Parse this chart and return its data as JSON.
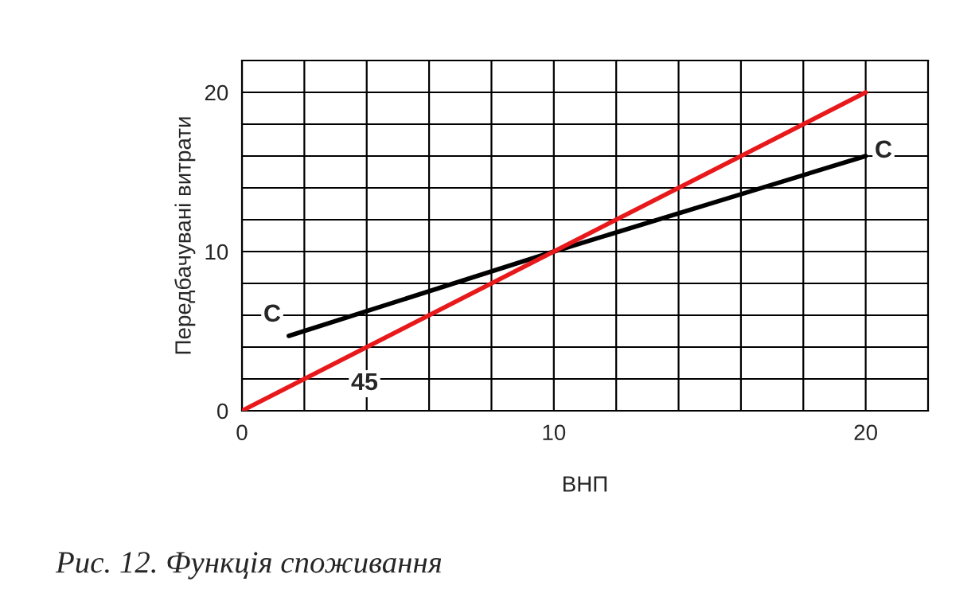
{
  "chart_data": {
    "type": "line",
    "xlabel": "ВНП",
    "ylabel": "Передбачувані витрати",
    "xlim": [
      0,
      22
    ],
    "ylim": [
      0,
      22
    ],
    "xticks": [
      0,
      {
        "value": 2,
        "label": null
      },
      {
        "value": 4,
        "label": null
      },
      {
        "value": 6,
        "label": null
      },
      {
        "value": 8,
        "label": null
      },
      10,
      {
        "value": 12,
        "label": null
      },
      {
        "value": 14,
        "label": null
      },
      {
        "value": 16,
        "label": null
      },
      {
        "value": 18,
        "label": null
      },
      20
    ],
    "yticks": [
      0,
      {
        "value": 2,
        "label": null
      },
      {
        "value": 4,
        "label": null
      },
      {
        "value": 6,
        "label": null
      },
      {
        "value": 8,
        "label": null
      },
      10,
      {
        "value": 12,
        "label": null
      },
      {
        "value": 14,
        "label": null
      },
      {
        "value": 16,
        "label": null
      },
      {
        "value": 18,
        "label": null
      },
      20
    ],
    "grid": true,
    "legend": false,
    "marker": "none",
    "line_style": "solid",
    "series": [
      {
        "color": "#000000",
        "x": [
          1.5,
          10,
          20
        ],
        "values": [
          4.7,
          10,
          16
        ]
      },
      {
        "color": "#e8191b",
        "x": [
          0,
          20
        ],
        "values": [
          0,
          20
        ]
      }
    ],
    "annotations": [
      "C",
      "C",
      "45",
      "Рис. 12. Функція споживання"
    ]
  }
}
